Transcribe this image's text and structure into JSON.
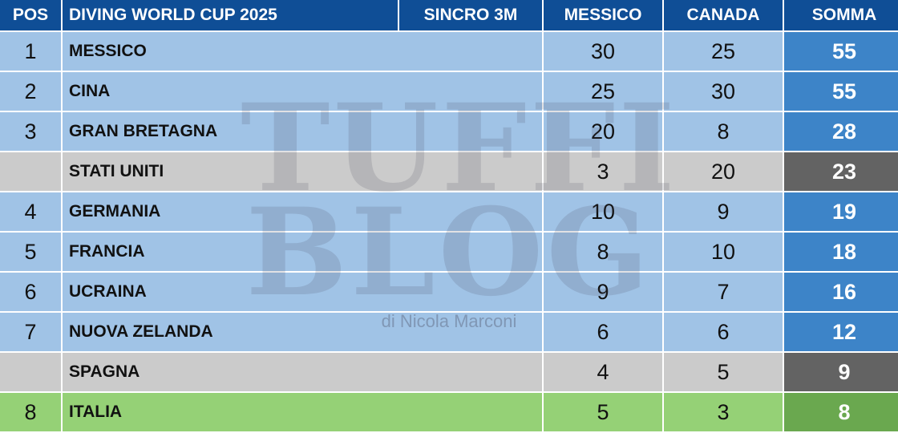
{
  "header": {
    "pos": "POS",
    "title": "DIVING WORLD CUP 2025",
    "event": "SINCRO 3M",
    "col1": "MESSICO",
    "col2": "CANADA",
    "total": "SOMMA"
  },
  "rows": [
    {
      "pos": "1",
      "country": "MESSICO",
      "messico": "30",
      "canada": "25",
      "somma": "55",
      "style": "blue"
    },
    {
      "pos": "2",
      "country": "CINA",
      "messico": "25",
      "canada": "30",
      "somma": "55",
      "style": "blue"
    },
    {
      "pos": "3",
      "country": "GRAN BRETAGNA",
      "messico": "20",
      "canada": "8",
      "somma": "28",
      "style": "blue"
    },
    {
      "pos": "",
      "country": "STATI UNITI",
      "messico": "3",
      "canada": "20",
      "somma": "23",
      "style": "gray"
    },
    {
      "pos": "4",
      "country": "GERMANIA",
      "messico": "10",
      "canada": "9",
      "somma": "19",
      "style": "blue"
    },
    {
      "pos": "5",
      "country": "FRANCIA",
      "messico": "8",
      "canada": "10",
      "somma": "18",
      "style": "blue"
    },
    {
      "pos": "6",
      "country": "UCRAINA",
      "messico": "9",
      "canada": "7",
      "somma": "16",
      "style": "blue"
    },
    {
      "pos": "7",
      "country": "NUOVA ZELANDA",
      "messico": "6",
      "canada": "6",
      "somma": "12",
      "style": "blue"
    },
    {
      "pos": "",
      "country": "SPAGNA",
      "messico": "4",
      "canada": "5",
      "somma": "9",
      "style": "gray"
    },
    {
      "pos": "8",
      "country": "ITALIA",
      "messico": "5",
      "canada": "3",
      "somma": "8",
      "style": "green"
    }
  ],
  "watermark": {
    "line1": "TUFFI",
    "line2": "BLOG",
    "byline": "di Nicola Marconi"
  },
  "colors": {
    "header": "#0f4e96",
    "row_blue": "#a0c3e6",
    "row_gray": "#cbcbcb",
    "row_green": "#95d176",
    "sum_blue": "#3d84c8",
    "sum_gray": "#636363",
    "sum_green": "#6aa84f"
  }
}
